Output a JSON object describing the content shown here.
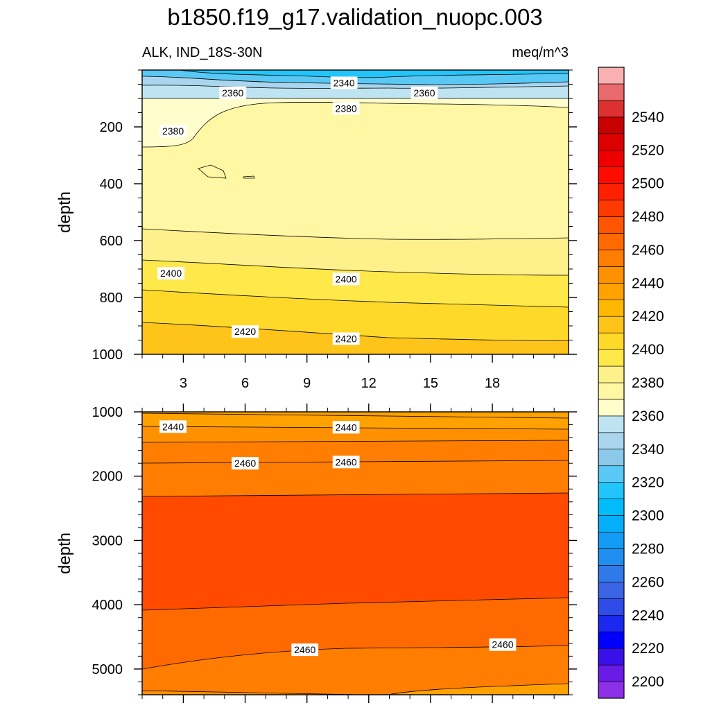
{
  "chart_data": {
    "type": "heatmap",
    "title": "b1850.f19_g17.validation_nuopc.003",
    "variable_label": "ALK, IND_18S-30N",
    "units_label": "meq/m^3",
    "xlabel": "",
    "ylabel": "depth",
    "x_range": [
      1,
      21.7
    ],
    "x_ticks": [
      "3",
      "6",
      "9",
      "12",
      "15",
      "18"
    ],
    "upper_panel": {
      "ylim": [
        0,
        1000
      ],
      "y_ticks": [
        "200",
        "400",
        "600",
        "800",
        "1000"
      ],
      "bands": [
        {
          "from_depth": 0,
          "to_depth": 40,
          "range": "2320-2330"
        },
        {
          "from_depth": 40,
          "to_depth": 90,
          "range": "2340-2360"
        },
        {
          "from_depth": 90,
          "to_depth": 270,
          "range": "2370-2380"
        },
        {
          "from_depth": 270,
          "to_depth": 600,
          "range": "2380-2390"
        },
        {
          "from_depth": 600,
          "to_depth": 880,
          "range": "2390-2410"
        },
        {
          "from_depth": 880,
          "to_depth": 1000,
          "range": "2410-2430"
        }
      ],
      "contour_labels": [
        {
          "x": 10.8,
          "depth": 45,
          "text": "2340"
        },
        {
          "x": 5.4,
          "depth": 80,
          "text": "2360"
        },
        {
          "x": 14.7,
          "depth": 80,
          "text": "2360"
        },
        {
          "x": 10.9,
          "depth": 135,
          "text": "2380"
        },
        {
          "x": 2.5,
          "depth": 215,
          "text": "2380"
        },
        {
          "x": 2.4,
          "depth": 715,
          "text": "2400"
        },
        {
          "x": 10.9,
          "depth": 735,
          "text": "2400"
        },
        {
          "x": 6,
          "depth": 920,
          "text": "2420"
        },
        {
          "x": 10.9,
          "depth": 945,
          "text": "2420"
        }
      ]
    },
    "lower_panel": {
      "ylim": [
        1000,
        5400
      ],
      "y_ticks": [
        "1000",
        "2000",
        "3000",
        "4000",
        "5000"
      ],
      "bands": [
        {
          "from_depth": 1000,
          "to_depth": 1500,
          "range": "2430-2450"
        },
        {
          "from_depth": 1500,
          "to_depth": 2300,
          "range": "2450-2470"
        },
        {
          "from_depth": 2300,
          "to_depth": 4000,
          "range": "2470-2480"
        },
        {
          "from_depth": 4000,
          "to_depth": 5000,
          "range": "2460-2470"
        },
        {
          "from_depth": 5000,
          "to_depth": 5400,
          "range": "2440-2460"
        }
      ],
      "contour_labels": [
        {
          "x": 2.5,
          "depth": 1230,
          "text": "2440"
        },
        {
          "x": 10.9,
          "depth": 1240,
          "text": "2440"
        },
        {
          "x": 6,
          "depth": 1800,
          "text": "2460"
        },
        {
          "x": 10.9,
          "depth": 1780,
          "text": "2460"
        },
        {
          "x": 8.9,
          "depth": 4700,
          "text": "2460"
        },
        {
          "x": 18.5,
          "depth": 4620,
          "text": "2460"
        }
      ]
    },
    "colorbar": {
      "labels": [
        "2200",
        "2220",
        "2240",
        "2260",
        "2280",
        "2300",
        "2320",
        "2340",
        "2360",
        "2380",
        "2400",
        "2420",
        "2440",
        "2460",
        "2480",
        "2500",
        "2520",
        "2540"
      ],
      "colors_bottom_to_top": [
        "#8c2fe6",
        "#6a1be6",
        "#3a10e8",
        "#0000ff",
        "#1a28f0",
        "#2f4be8",
        "#3a64e4",
        "#2f7ae8",
        "#1f8ef0",
        "#129cf4",
        "#04aef8",
        "#00bcfb",
        "#22c5fa",
        "#5ac8f4",
        "#8ac9ea",
        "#a9d6ee",
        "#bfe4f1",
        "#fffdcc",
        "#fff7a3",
        "#fef08a",
        "#ffe84a",
        "#ffd92a",
        "#ffc41a",
        "#ffb800",
        "#ffa200",
        "#ff9000",
        "#ff7d00",
        "#ff6a00",
        "#ff5500",
        "#ff3a00",
        "#ff2000",
        "#ff0c00",
        "#ee0000",
        "#dd0000",
        "#c80000",
        "#dd3030",
        "#e86a6a",
        "#f8b0b0"
      ]
    }
  }
}
